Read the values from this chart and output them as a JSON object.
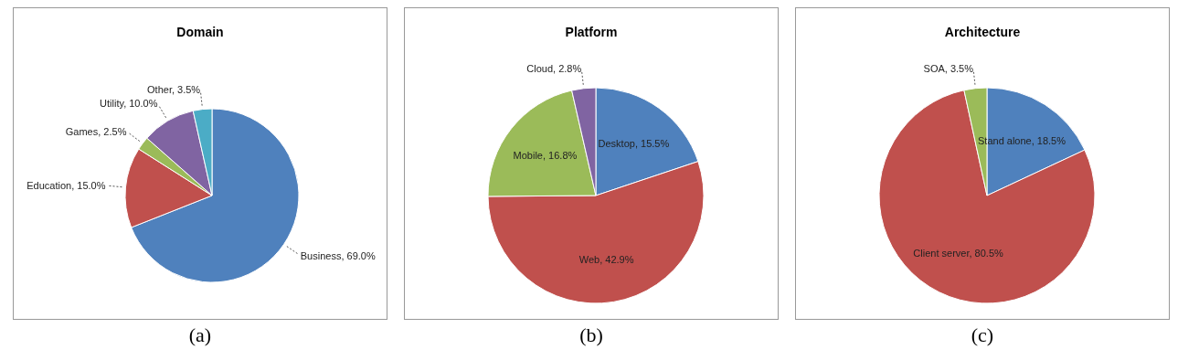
{
  "chart_data": [
    {
      "type": "pie",
      "title": "Domain",
      "categories": [
        "Business",
        "Education",
        "Games",
        "Utility",
        "Other"
      ],
      "values": [
        69.0,
        15.0,
        2.5,
        10.0,
        3.5
      ],
      "value_labels": [
        "69.0%",
        "15.0%",
        "2.5%",
        "10.0%",
        "3.5%"
      ],
      "colors": [
        "#4f81bd",
        "#c0504d",
        "#9bbb59",
        "#8064a2",
        "#4bacc6"
      ],
      "annotations": [
        "(a)"
      ]
    },
    {
      "type": "pie",
      "title": "Platform",
      "categories": [
        "Desktop",
        "Web",
        "Mobile",
        "Cloud"
      ],
      "values": [
        15.5,
        42.9,
        16.8,
        2.8
      ],
      "value_labels": [
        "15.5%",
        "42.9%",
        "16.8%",
        "2.8%"
      ],
      "colors": [
        "#4f81bd",
        "#c0504d",
        "#9bbb59",
        "#8064a2"
      ],
      "annotations": [
        "(b)"
      ]
    },
    {
      "type": "pie",
      "title": "Architecture",
      "categories": [
        "Stand alone",
        "Client server",
        "SOA"
      ],
      "values": [
        18.5,
        80.5,
        3.5
      ],
      "value_labels": [
        "18.5%",
        "80.5%",
        "3.5%"
      ],
      "colors": [
        "#4f81bd",
        "#c0504d",
        "#9bbb59"
      ],
      "annotations": [
        "(c)"
      ]
    }
  ]
}
